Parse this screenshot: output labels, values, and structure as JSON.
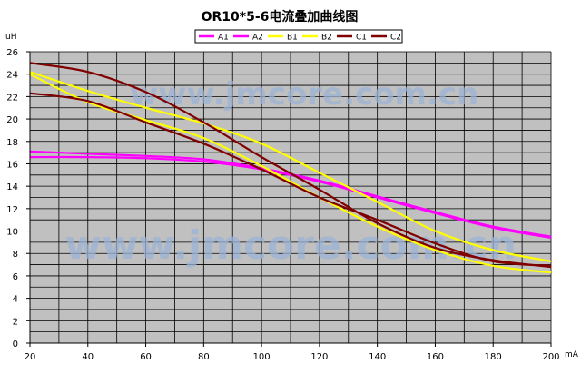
{
  "chart_data": {
    "type": "line",
    "title": "OR10*5-6电流叠加曲线图",
    "ylabel": "uH",
    "xlabel": "mA",
    "watermark": "www.jmcore.com.cn",
    "xlim": [
      20,
      200
    ],
    "ylim": [
      0,
      26
    ],
    "x_ticks": [
      20,
      40,
      60,
      80,
      100,
      120,
      140,
      160,
      180,
      200
    ],
    "y_ticks": [
      0,
      2,
      4,
      6,
      8,
      10,
      12,
      14,
      16,
      18,
      20,
      22,
      24,
      26
    ],
    "grid": true,
    "plot_background": "#c0c0c0",
    "legend_position": "top-center",
    "x": [
      20,
      40,
      60,
      80,
      100,
      120,
      140,
      160,
      180,
      200
    ],
    "series": [
      {
        "name": "A1",
        "color": "#ff00ff",
        "values": [
          17.1,
          16.9,
          16.7,
          16.4,
          15.6,
          14.5,
          13.1,
          11.7,
          10.4,
          9.5
        ]
      },
      {
        "name": "A2",
        "color": "#ff00ff",
        "values": [
          16.6,
          16.6,
          16.5,
          16.2,
          15.5,
          14.4,
          13.0,
          11.6,
          10.3,
          9.4
        ]
      },
      {
        "name": "B1",
        "color": "#ffff00",
        "values": [
          24.2,
          22.5,
          21.0,
          19.6,
          17.8,
          15.2,
          12.6,
          10.0,
          8.3,
          7.3
        ]
      },
      {
        "name": "B2",
        "color": "#ffff00",
        "values": [
          24.0,
          21.5,
          19.9,
          18.3,
          15.8,
          13.0,
          10.4,
          8.3,
          6.9,
          6.3
        ]
      },
      {
        "name": "C1",
        "color": "#800000",
        "values": [
          25.0,
          24.2,
          22.4,
          19.7,
          16.6,
          13.7,
          10.7,
          8.5,
          7.4,
          6.8
        ]
      },
      {
        "name": "C2",
        "color": "#800000",
        "values": [
          22.3,
          21.6,
          19.7,
          17.8,
          15.5,
          13.0,
          11.0,
          8.9,
          7.3,
          6.9
        ]
      }
    ]
  }
}
